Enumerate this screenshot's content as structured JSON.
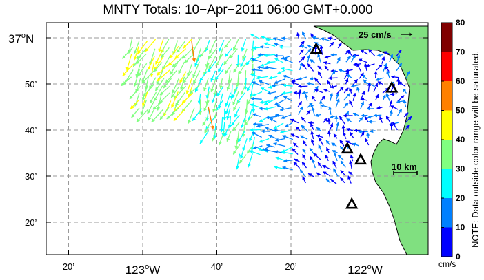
{
  "title": "MNTY Totals: 10−Apr−2011 06:00 GMT+0.000",
  "lat_labels": [
    {
      "text": "37",
      "deg": "o",
      "suffix": "N",
      "lat": 37.0
    },
    {
      "text": "50’",
      "lat": 36.8333
    },
    {
      "text": "40’",
      "lat": 36.6667
    },
    {
      "text": "30’",
      "lat": 36.5
    },
    {
      "text": "20’",
      "lat": 36.3333
    }
  ],
  "lon_labels": [
    {
      "text": "20’",
      "lon": -123.3333
    },
    {
      "text": "123",
      "deg": "o",
      "suffix": "W",
      "lon": -123.0
    },
    {
      "text": "40’",
      "lon": -122.6667
    },
    {
      "text": "20’",
      "lon": -122.3333
    },
    {
      "text": "122",
      "deg": "o",
      "suffix": "W",
      "lon": -122.0
    }
  ],
  "scale_arrow_label": "25 cm/s",
  "scale_bar_label": "10 km",
  "colorbar": {
    "ticks": [
      "0",
      "10",
      "20",
      "30",
      "40",
      "50",
      "60",
      "70",
      "80"
    ],
    "colors": [
      "#0000ff",
      "#0080ff",
      "#00ffff",
      "#80ff80",
      "#ffff00",
      "#ff8000",
      "#ff0000",
      "#800000"
    ],
    "unit": "cm/s",
    "note": "NOTE: Data outside color range will be saturated."
  },
  "colors": {
    "land": "#80e080",
    "coast": "#000000",
    "grid": "#999999"
  },
  "sites": [
    {
      "lat": 36.96,
      "lon": -122.22
    },
    {
      "lat": 36.82,
      "lon": -121.88
    },
    {
      "lat": 36.6,
      "lon": -122.08
    },
    {
      "lat": 36.56,
      "lon": -122.02
    },
    {
      "lat": 36.4,
      "lon": -122.06
    }
  ]
}
